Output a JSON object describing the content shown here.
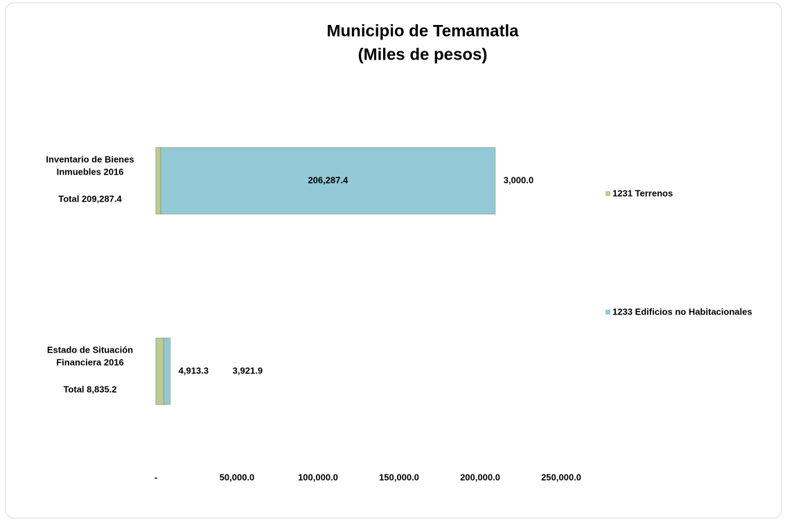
{
  "chart_data": {
    "type": "bar",
    "orientation": "horizontal",
    "stacked": true,
    "title": [
      "Municipio de Temamatla",
      "(Miles de pesos)"
    ],
    "categories": [
      [
        "Inventario de Bienes",
        "Inmuebles 2016"
      ],
      [
        "Estado de Situación",
        "Financiera 2016"
      ]
    ],
    "totals": [
      209287.4,
      8835.2
    ],
    "totals_labels": [
      "Total 209,287.4",
      "Total  8,835.2"
    ],
    "series": [
      {
        "name": "1231 Terrenos",
        "color": "#bccb93",
        "values": [
          3000.0,
          4913.3
        ],
        "value_labels": [
          "3,000.0",
          "4,913.3"
        ]
      },
      {
        "name": "1233 Edificios no Habitacionales",
        "color": "#93c8d6",
        "values": [
          206287.4,
          3921.9
        ],
        "value_labels": [
          "206,287.4",
          "3,921.9"
        ]
      }
    ],
    "xlim": [
      0,
      250000
    ],
    "xticks": [
      {
        "value": 0,
        "label": "-"
      },
      {
        "value": 50000,
        "label": "50,000.0"
      },
      {
        "value": 100000,
        "label": "100,000.0"
      },
      {
        "value": 150000,
        "label": "150,000.0"
      },
      {
        "value": 200000,
        "label": "200,000.0"
      },
      {
        "value": 250000,
        "label": "250,000.0"
      }
    ],
    "grid": false,
    "legend": "right"
  }
}
